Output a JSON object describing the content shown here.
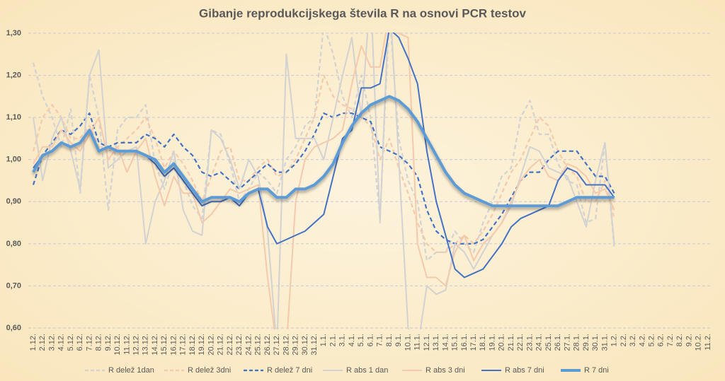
{
  "chart_data": {
    "type": "line",
    "title": "Gibanje reprodukcijskega števila R na osnovi PCR testov",
    "categories": [
      "1.12.",
      "2.12.",
      "3.12.",
      "4.12.",
      "5.12.",
      "6.12.",
      "7.12.",
      "8.12.",
      "9.12.",
      "10.12.",
      "11.12.",
      "12.12.",
      "13.12.",
      "14.12.",
      "15.12.",
      "16.12.",
      "17.12.",
      "18.12.",
      "19.12.",
      "20.12.",
      "21.12.",
      "22.12.",
      "23.12.",
      "24.12.",
      "25.12.",
      "26.12.",
      "27.12.",
      "28.12.",
      "29.12.",
      "30.12.",
      "31.12.",
      "1.1.",
      "2.1.",
      "3.1.",
      "4.1.",
      "5.1.",
      "6.1.",
      "7.1.",
      "8.1.",
      "9.1.",
      "10.1.",
      "11.1.",
      "12.1.",
      "13.1.",
      "14.1.",
      "15.1.",
      "16.1.",
      "17.1.",
      "18.1.",
      "19.1.",
      "20.1.",
      "21.1.",
      "22.1.",
      "23.1.",
      "24.1.",
      "25.1.",
      "26.1.",
      "27.1.",
      "28.1.",
      "29.1.",
      "30.1.",
      "31.1.",
      "1.2.",
      "2.2.",
      "3.2.",
      "4.2.",
      "5.2.",
      "6.2.",
      "7.2.",
      "8.2.",
      "9.2.",
      "10.2.",
      "11.2."
    ],
    "ylim": [
      0.6,
      1.3
    ],
    "yticks": [
      {
        "value": 0.6,
        "label": "0,60"
      },
      {
        "value": 0.7,
        "label": "0,70"
      },
      {
        "value": 0.8,
        "label": "0,80"
      },
      {
        "value": 0.9,
        "label": "0,90"
      },
      {
        "value": 1.0,
        "label": "1,00"
      },
      {
        "value": 1.1,
        "label": "1,10"
      },
      {
        "value": 1.2,
        "label": "1,20"
      },
      {
        "value": 1.3,
        "label": "1,30"
      }
    ],
    "grid": true,
    "legend": "bottom",
    "series": [
      {
        "name": "R delež 1dan",
        "color": "#d2d2d2",
        "line_style": "dashed",
        "values": [
          1.23,
          1.15,
          1.1,
          1.03,
          1.12,
          0.92,
          1.2,
          1.1,
          0.88,
          1.07,
          1.1,
          1.1,
          1.13,
          0.99,
          0.93,
          1.0,
          0.95,
          0.89,
          0.86,
          1.07,
          1.06,
          0.99,
          0.9,
          0.93,
          0.97,
          0.95,
          0.92,
          1.0,
          1.03,
          1.08,
          1.1,
          1.32,
          1.25,
          1.15,
          1.1,
          1.2,
          1.1,
          0.86,
          1.35,
          1.05,
          0.95,
          0.9,
          0.76,
          0.78,
          0.78,
          0.83,
          0.8,
          0.78,
          0.85,
          0.9,
          0.96,
          0.98,
          1.1,
          1.14,
          1.06,
          1.06,
          0.99,
          0.95,
          0.94,
          0.85,
          0.86,
          1.04,
          0.79,
          null,
          null,
          null,
          null,
          null,
          null,
          null,
          null,
          null,
          null
        ]
      },
      {
        "name": "R delež 3dni",
        "color": "#f5c9ab",
        "line_style": "dashed",
        "values": [
          1.02,
          1.1,
          1.13,
          1.1,
          1.05,
          1.05,
          1.08,
          1.03,
          1.02,
          1.03,
          1.05,
          1.07,
          1.1,
          1.05,
          0.98,
          1.02,
          0.99,
          0.95,
          0.9,
          0.96,
          1.02,
          1.03,
          0.95,
          0.95,
          0.98,
          1.0,
          0.96,
          0.97,
          1.0,
          1.05,
          1.1,
          1.2,
          1.15,
          1.13,
          1.12,
          1.1,
          1.08,
          1.0,
          1.05,
          0.98,
          0.92,
          0.85,
          0.8,
          0.78,
          0.78,
          0.8,
          0.82,
          0.8,
          0.83,
          0.87,
          0.92,
          0.97,
          1.0,
          1.05,
          1.1,
          1.08,
          1.02,
          0.98,
          0.96,
          0.9,
          0.9,
          0.95,
          0.86,
          null,
          null,
          null,
          null,
          null,
          null,
          null,
          null,
          null,
          null
        ]
      },
      {
        "name": "R delež 7 dni",
        "color": "#4472c4",
        "line_style": "dashed",
        "values": [
          0.94,
          1.01,
          1.04,
          1.07,
          1.06,
          1.08,
          1.11,
          1.04,
          1.03,
          1.04,
          1.04,
          1.04,
          1.06,
          1.05,
          1.03,
          1.06,
          1.03,
          1.01,
          0.97,
          0.96,
          0.97,
          0.95,
          0.93,
          0.95,
          0.97,
          0.99,
          0.97,
          0.97,
          0.99,
          1.02,
          1.06,
          1.11,
          1.1,
          1.11,
          1.11,
          1.1,
          1.09,
          1.03,
          1.02,
          1.01,
          0.99,
          0.96,
          0.88,
          0.83,
          0.81,
          0.8,
          0.8,
          0.8,
          0.81,
          0.84,
          0.87,
          0.91,
          0.95,
          0.97,
          0.97,
          1.0,
          1.02,
          1.02,
          1.02,
          0.99,
          0.96,
          0.96,
          0.92,
          null,
          null,
          null,
          null,
          null,
          null,
          null,
          null,
          null,
          null
        ]
      },
      {
        "name": "R abs 1 dan",
        "color": "#d2d2d2",
        "line_style": "solid",
        "values": [
          1.1,
          0.95,
          1.05,
          1.1,
          1.02,
          0.93,
          1.2,
          1.26,
          0.98,
          1.0,
          1.02,
          1.03,
          0.8,
          0.9,
          0.95,
          1.02,
          0.88,
          0.83,
          0.82,
          1.07,
          1.05,
          1.0,
          0.93,
          1.0,
          0.96,
          0.83,
          0.55,
          1.25,
          1.05,
          1.05,
          1.05,
          1.0,
          1.1,
          1.2,
          1.29,
          1.1,
          1.4,
          0.85,
          1.4,
          1.0,
          0.6,
          0.55,
          0.7,
          0.68,
          0.69,
          0.8,
          0.78,
          0.74,
          0.78,
          0.82,
          0.85,
          0.89,
          0.96,
          1.03,
          1.02,
          0.98,
          0.97,
          0.96,
          0.9,
          0.84,
          0.95,
          1.04,
          0.8,
          null,
          null,
          null,
          null,
          null,
          null,
          null,
          null,
          null,
          null
        ]
      },
      {
        "name": "R abs 3 dni",
        "color": "#f5c9ab",
        "line_style": "solid",
        "values": [
          0.99,
          1.03,
          1.03,
          1.07,
          1.04,
          1.02,
          1.06,
          1.1,
          1.0,
          1.03,
          0.97,
          1.02,
          1.05,
          0.96,
          0.89,
          0.96,
          0.92,
          0.92,
          0.85,
          0.87,
          0.9,
          0.93,
          0.92,
          0.93,
          0.94,
          0.72,
          0.55,
          0.55,
          0.9,
          1.0,
          1.03,
          1.04,
          1.05,
          1.07,
          1.18,
          1.27,
          1.22,
          1.22,
          1.35,
          1.3,
          1.29,
          0.8,
          0.72,
          0.72,
          0.7,
          0.78,
          0.82,
          0.76,
          0.8,
          0.82,
          0.85,
          0.9,
          0.95,
          0.98,
          1.0,
          0.96,
          0.95,
          0.99,
          0.98,
          0.96,
          0.92,
          0.93,
          0.88,
          null,
          null,
          null,
          null,
          null,
          null,
          null,
          null,
          null,
          null
        ]
      },
      {
        "name": "R abs 7 dni",
        "color": "#4472c4",
        "line_style": "solid",
        "values": [
          0.98,
          1.01,
          1.02,
          1.04,
          1.03,
          1.04,
          1.07,
          1.02,
          1.03,
          1.02,
          1.02,
          1.02,
          1.01,
          0.99,
          0.96,
          0.98,
          0.95,
          0.92,
          0.89,
          0.9,
          0.9,
          0.91,
          0.89,
          0.92,
          0.93,
          0.84,
          0.8,
          0.81,
          0.82,
          0.83,
          0.85,
          0.87,
          0.96,
          1.05,
          1.07,
          1.17,
          1.17,
          1.18,
          1.31,
          1.29,
          1.24,
          1.18,
          1.02,
          0.9,
          0.82,
          0.74,
          0.72,
          0.73,
          0.74,
          0.77,
          0.8,
          0.84,
          0.86,
          0.87,
          0.88,
          0.89,
          0.95,
          0.98,
          0.97,
          0.94,
          0.94,
          0.94,
          0.91,
          null,
          null,
          null,
          null,
          null,
          null,
          null,
          null,
          null,
          null
        ]
      },
      {
        "name": "R 7 dni",
        "color": "#5b9bd5",
        "line_style": "bold",
        "values": [
          0.97,
          1.01,
          1.02,
          1.04,
          1.03,
          1.04,
          1.07,
          1.02,
          1.03,
          1.02,
          1.02,
          1.02,
          1.01,
          1.0,
          0.97,
          0.99,
          0.96,
          0.93,
          0.9,
          0.91,
          0.91,
          0.91,
          0.9,
          0.92,
          0.93,
          0.93,
          0.91,
          0.91,
          0.93,
          0.93,
          0.94,
          0.96,
          0.99,
          1.04,
          1.08,
          1.11,
          1.13,
          1.14,
          1.15,
          1.14,
          1.12,
          1.09,
          1.05,
          1.01,
          0.97,
          0.94,
          0.92,
          0.91,
          0.9,
          0.89,
          0.89,
          0.89,
          0.89,
          0.89,
          0.89,
          0.89,
          0.89,
          0.9,
          0.91,
          0.91,
          0.91,
          0.91,
          0.91,
          null,
          null,
          null,
          null,
          null,
          null,
          null,
          null,
          null,
          null
        ]
      }
    ]
  }
}
